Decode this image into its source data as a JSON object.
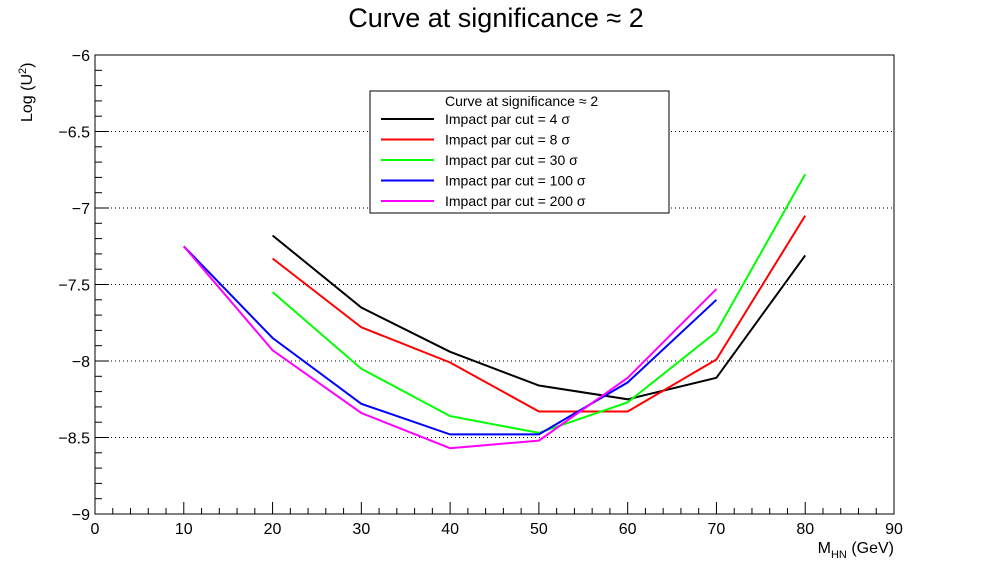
{
  "chart_data": {
    "type": "line",
    "title": "Curve at significance ≈ 2",
    "xlabel": {
      "main": "M",
      "sub": "HN",
      "unit": " (GeV)"
    },
    "ylabel": {
      "main": "Log (U",
      "sup": "2",
      "end": ")"
    },
    "xlim": [
      0,
      90
    ],
    "ylim": [
      -9,
      -6
    ],
    "x_ticks": [
      0,
      10,
      20,
      30,
      40,
      50,
      60,
      70,
      80,
      90
    ],
    "x_tick_labels": [
      "0",
      "10",
      "20",
      "30",
      "40",
      "50",
      "60",
      "70",
      "80",
      "90"
    ],
    "y_ticks": [
      -9,
      -8.5,
      -8,
      -7.5,
      -7,
      -6.5,
      -6
    ],
    "y_tick_labels": [
      "−9",
      "−8.5",
      "−8",
      "−7.5",
      "−7",
      "−6.5",
      "−6"
    ],
    "grid": "horizontal dotted at major y ticks",
    "legend": {
      "header": "Curve at significance ≈ 2",
      "position": "top-center"
    },
    "series": [
      {
        "name": "Impact par cut = 4 σ",
        "color": "#000000",
        "x": [
          20,
          30,
          40,
          50,
          60,
          70,
          80
        ],
        "y": [
          -7.18,
          -7.65,
          -7.94,
          -8.16,
          -8.25,
          -8.11,
          -7.31
        ]
      },
      {
        "name": "Impact par cut = 8 σ",
        "color": "#ff0000",
        "x": [
          20,
          30,
          40,
          50,
          60,
          70,
          80
        ],
        "y": [
          -7.33,
          -7.78,
          -8.01,
          -8.33,
          -8.33,
          -7.99,
          -7.05
        ]
      },
      {
        "name": "Impact par cut = 30 σ",
        "color": "#00ff00",
        "x": [
          20,
          30,
          40,
          50,
          60,
          70,
          80
        ],
        "y": [
          -7.55,
          -8.05,
          -8.36,
          -8.47,
          -8.27,
          -7.81,
          -6.78
        ]
      },
      {
        "name": "Impact par cut = 100 σ",
        "color": "#0000ff",
        "x": [
          10,
          20,
          30,
          40,
          50,
          60,
          70
        ],
        "y": [
          -7.25,
          -7.85,
          -8.28,
          -8.48,
          -8.48,
          -8.14,
          -7.6
        ]
      },
      {
        "name": "Impact par cut = 200 σ",
        "color": "#ff00ff",
        "x": [
          10,
          20,
          30,
          40,
          50,
          60,
          70
        ],
        "y": [
          -7.25,
          -7.93,
          -8.34,
          -8.57,
          -8.52,
          -8.11,
          -7.53
        ]
      }
    ]
  }
}
